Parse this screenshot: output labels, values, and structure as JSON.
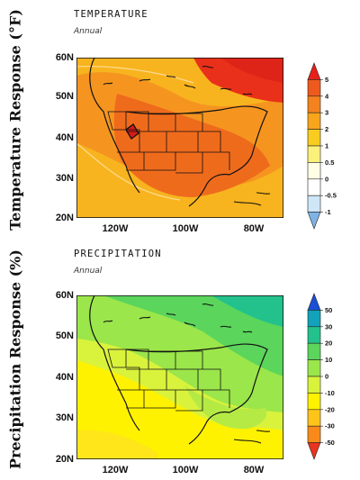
{
  "temperature": {
    "title": "TEMPERATURE",
    "subtitle": "Annual",
    "ylabel": "Temperature Response (°F)",
    "lat_labels": [
      "60N",
      "50N",
      "40N",
      "30N",
      "20N"
    ],
    "lon_labels": [
      "120W",
      "100W",
      "80W"
    ],
    "colorbar": {
      "labels": [
        "5",
        "4",
        "3",
        "2",
        "1",
        "0.5",
        "0",
        "-0.5",
        "-1"
      ],
      "colors": [
        "#e8201a",
        "#ee5a1e",
        "#f4821e",
        "#f8a51c",
        "#f9cd20",
        "#fbf07a",
        "#ffffe6",
        "#ffffff",
        "#cfe6f7",
        "#7fb3e6"
      ]
    }
  },
  "precipitation": {
    "title": "PRECIPITATION",
    "subtitle": "Annual",
    "ylabel": "Precipitation Response (%)",
    "lat_labels": [
      "60N",
      "50N",
      "40N",
      "30N",
      "20N"
    ],
    "lon_labels": [
      "120W",
      "100W",
      "80W"
    ],
    "colorbar": {
      "labels": [
        "50",
        "30",
        "20",
        "10",
        "0",
        "-10",
        "-20",
        "-30",
        "-50"
      ],
      "colors": [
        "#1b4fd6",
        "#12a2ba",
        "#23c28c",
        "#5bd55c",
        "#9be64a",
        "#d9f23c",
        "#fff200",
        "#ffc41a",
        "#f98a1a",
        "#e83420"
      ]
    }
  }
}
